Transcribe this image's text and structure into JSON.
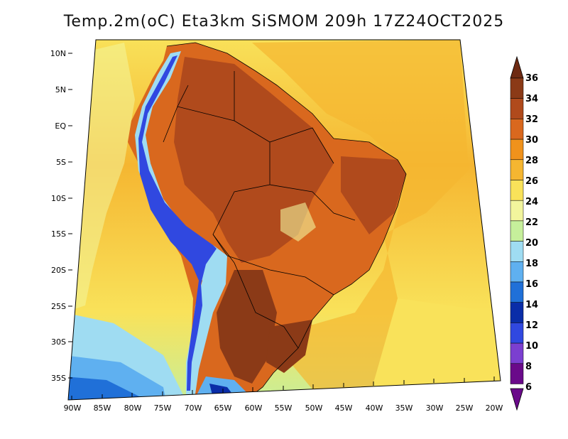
{
  "title": "Temp.2m(oC) Eta3km SiSMOM 209h 17Z24OCT2025",
  "lat_labels": [
    "10N",
    "5N",
    "EQ",
    "5S",
    "10S",
    "15S",
    "20S",
    "25S",
    "30S",
    "35S"
  ],
  "lon_labels": [
    "90W",
    "85W",
    "80W",
    "75W",
    "70W",
    "65W",
    "60W",
    "55W",
    "50W",
    "45W",
    "40W",
    "35W",
    "30W",
    "25W",
    "20W"
  ],
  "colorbar": {
    "labels": [
      "36",
      "34",
      "32",
      "30",
      "28",
      "26",
      "24",
      "22",
      "20",
      "18",
      "16",
      "14",
      "12",
      "10",
      "8",
      "6"
    ],
    "colors": [
      "#6e2a12",
      "#8b3a17",
      "#b04a1c",
      "#d9681e",
      "#f0921c",
      "#f5b631",
      "#f9e25a",
      "#f2f59d",
      "#c6ef9b",
      "#9fdcf2",
      "#5fb0f0",
      "#2070d8",
      "#0a2da8",
      "#3048e0",
      "#7b3fd0",
      "#6a0a8a"
    ]
  },
  "regions": {
    "ocean_warm": "#f5b631",
    "ocean_cool": "#f9e25a",
    "land_hot": "#b04a1c",
    "land_hottest": "#8b3a17",
    "andes": "#3048e0"
  }
}
